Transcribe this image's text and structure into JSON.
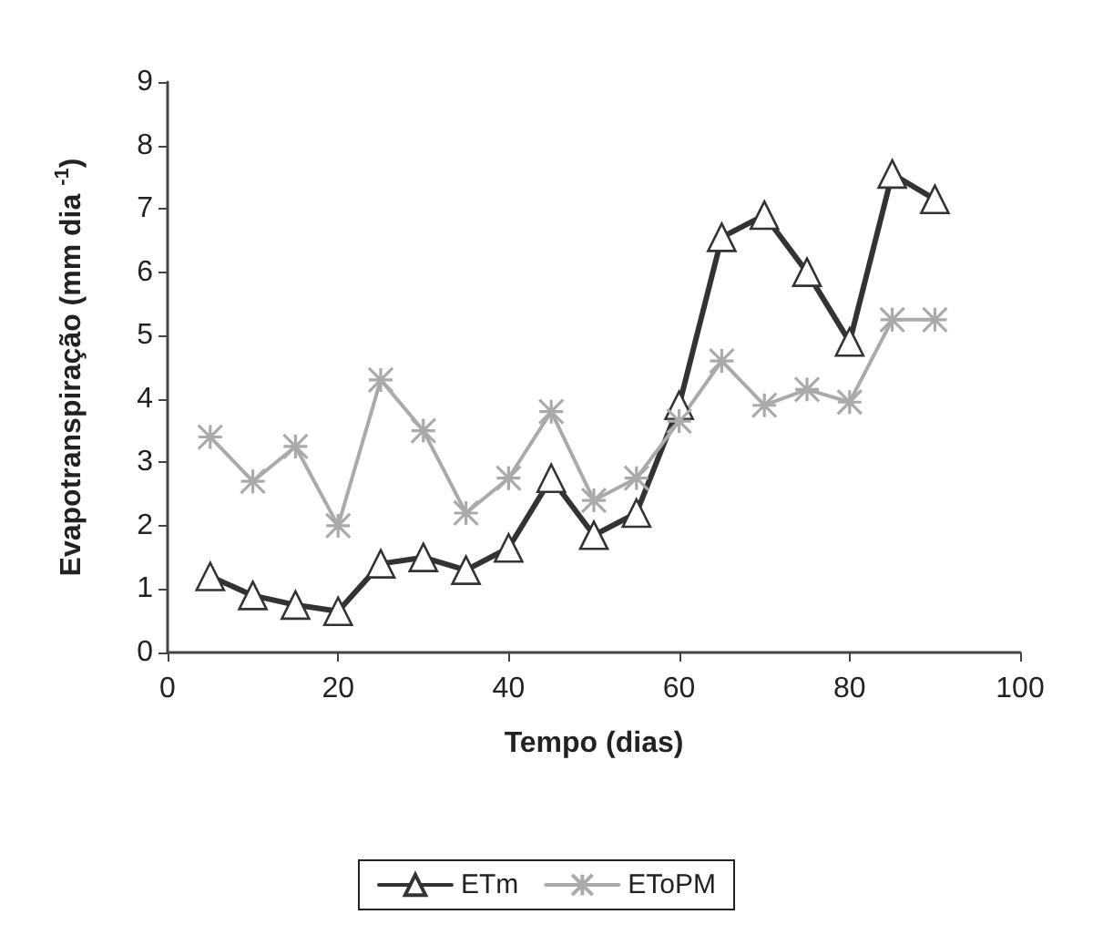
{
  "chart_data": {
    "type": "line",
    "xlabel": "Tempo (dias)",
    "ylabel": "Evapotranspiração (mm dia $^{-1}$)",
    "x": [
      5,
      10,
      15,
      20,
      25,
      30,
      35,
      40,
      45,
      50,
      55,
      60,
      65,
      70,
      75,
      80,
      85,
      90
    ],
    "series": [
      {
        "name": "ETm",
        "color": "#333333",
        "marker": "triangle",
        "values": [
          1.2,
          0.9,
          0.75,
          0.65,
          1.4,
          1.5,
          1.3,
          1.65,
          2.75,
          1.85,
          2.2,
          3.9,
          6.55,
          6.9,
          6.0,
          4.9,
          7.55,
          7.15
        ]
      },
      {
        "name": "EToPM",
        "color": "#aaaaaa",
        "marker": "cross",
        "values": [
          3.4,
          2.7,
          3.25,
          2.0,
          4.3,
          3.5,
          2.2,
          2.75,
          3.8,
          2.4,
          2.75,
          3.65,
          4.6,
          3.9,
          4.15,
          3.95,
          5.25,
          5.25
        ]
      }
    ],
    "xlim": [
      0,
      100
    ],
    "xticks": [
      0,
      20,
      40,
      60,
      80,
      100
    ],
    "ylim": [
      0,
      9
    ],
    "yticks": [
      0,
      1,
      2,
      3,
      4,
      5,
      6,
      7,
      8,
      9
    ],
    "grid": false,
    "legend": "bottom",
    "line_style": "solid"
  }
}
